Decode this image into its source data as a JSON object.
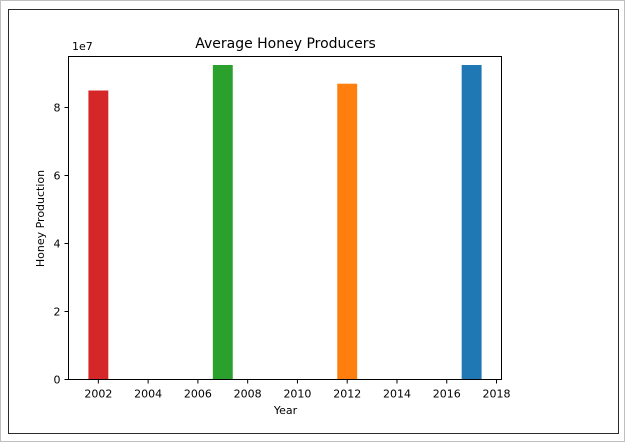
{
  "chart_data": {
    "type": "bar",
    "title": "Average Honey Producers",
    "xlabel": "Year",
    "ylabel": "Honey Production",
    "y_offset_label": "1e7",
    "x": [
      2002,
      2007,
      2012,
      2017
    ],
    "values": [
      85000000,
      92500000,
      87000000,
      92500000
    ],
    "bar_colors": [
      "#d62728",
      "#2ca02c",
      "#ff7f0e",
      "#1f77b4"
    ],
    "xlim": [
      2000.8,
      2018.2
    ],
    "ylim": [
      0,
      95000000
    ],
    "x_ticks": [
      2002,
      2004,
      2006,
      2008,
      2010,
      2012,
      2014,
      2016,
      2018
    ],
    "y_ticks": [
      0,
      2,
      4,
      6,
      8
    ],
    "y_tick_scale": 10000000,
    "bar_width": 0.8,
    "grid": false,
    "legend": "none"
  }
}
